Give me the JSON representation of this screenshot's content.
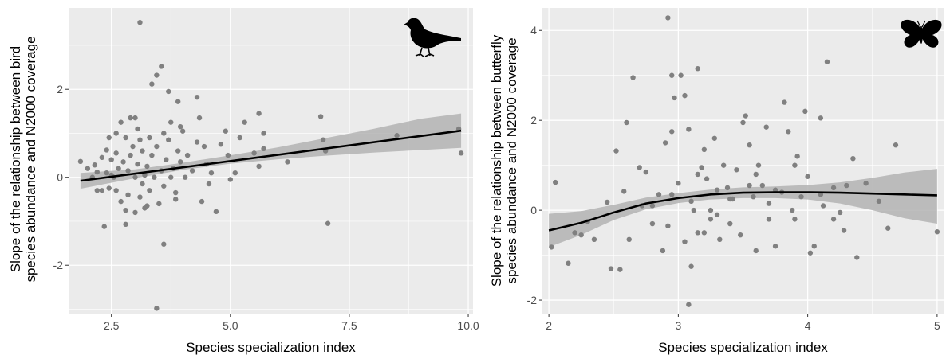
{
  "chart_data": [
    {
      "type": "scatter",
      "panel": "left",
      "icon": "bird-silhouette-icon",
      "xlabel": "Species specialization index",
      "ylabel_lines": [
        "Slope of the relationship between bird",
        "species abundance and N2000 coverage"
      ],
      "xlim": [
        1.6,
        10.1
      ],
      "ylim": [
        -3.1,
        3.85
      ],
      "xticks": [
        2.5,
        5.0,
        7.5,
        10.0
      ],
      "xtick_labels": [
        "2.5",
        "5.0",
        "7.5",
        "10.0"
      ],
      "yticks": [
        -2,
        0,
        2
      ],
      "ytick_labels": [
        "-2",
        "0",
        "2"
      ],
      "grid": true,
      "points": [
        [
          1.85,
          0.36
        ],
        [
          2.0,
          0.2
        ],
        [
          2.1,
          0.0
        ],
        [
          2.15,
          0.28
        ],
        [
          2.2,
          0.12
        ],
        [
          2.3,
          0.45
        ],
        [
          2.3,
          -0.3
        ],
        [
          2.35,
          -1.12
        ],
        [
          2.4,
          0.1
        ],
        [
          2.4,
          0.62
        ],
        [
          2.45,
          0.9
        ],
        [
          2.45,
          -0.25
        ],
        [
          2.5,
          0.4
        ],
        [
          2.5,
          0.05
        ],
        [
          2.55,
          0.0
        ],
        [
          2.6,
          1.0
        ],
        [
          2.6,
          -0.3
        ],
        [
          2.6,
          0.55
        ],
        [
          2.65,
          0.2
        ],
        [
          2.7,
          1.25
        ],
        [
          2.7,
          -0.55
        ],
        [
          2.75,
          0.35
        ],
        [
          2.8,
          0.9
        ],
        [
          2.8,
          -1.07
        ],
        [
          2.85,
          0.15
        ],
        [
          2.85,
          -0.4
        ],
        [
          2.9,
          1.35
        ],
        [
          2.9,
          0.5
        ],
        [
          2.95,
          0.7
        ],
        [
          3.0,
          0.0
        ],
        [
          3.0,
          -0.8
        ],
        [
          3.05,
          1.1
        ],
        [
          3.05,
          0.3
        ],
        [
          3.1,
          -0.45
        ],
        [
          3.1,
          0.85
        ],
        [
          3.15,
          0.6
        ],
        [
          3.15,
          -0.15
        ],
        [
          3.2,
          0.05
        ],
        [
          3.2,
          -0.7
        ],
        [
          3.25,
          0.25
        ],
        [
          3.3,
          0.9
        ],
        [
          3.3,
          -0.3
        ],
        [
          3.35,
          0.5
        ],
        [
          3.4,
          0.0
        ],
        [
          3.45,
          0.7
        ],
        [
          3.5,
          -0.6
        ],
        [
          3.55,
          0.15
        ],
        [
          3.6,
          1.0
        ],
        [
          3.6,
          -0.2
        ],
        [
          3.65,
          0.4
        ],
        [
          3.7,
          0.85
        ],
        [
          3.75,
          0.0
        ],
        [
          3.8,
          0.2
        ],
        [
          3.85,
          -0.5
        ],
        [
          3.9,
          0.6
        ],
        [
          3.95,
          0.35
        ],
        [
          4.0,
          1.05
        ],
        [
          4.05,
          0.0
        ],
        [
          4.1,
          0.5
        ],
        [
          4.2,
          0.15
        ],
        [
          4.3,
          0.8
        ],
        [
          4.4,
          -0.55
        ],
        [
          4.5,
          0.3
        ],
        [
          4.6,
          0.1
        ],
        [
          3.1,
          3.52
        ],
        [
          3.55,
          2.52
        ],
        [
          3.45,
          2.32
        ],
        [
          3.35,
          2.12
        ],
        [
          3.7,
          1.95
        ],
        [
          3.9,
          1.72
        ],
        [
          3.0,
          1.35
        ],
        [
          4.3,
          1.82
        ],
        [
          4.35,
          1.35
        ],
        [
          3.75,
          1.25
        ],
        [
          3.6,
          -1.52
        ],
        [
          3.45,
          -2.98
        ],
        [
          4.55,
          -0.15
        ],
        [
          4.8,
          0.75
        ],
        [
          4.9,
          1.05
        ],
        [
          5.0,
          -0.05
        ],
        [
          5.1,
          0.1
        ],
        [
          5.3,
          1.25
        ],
        [
          5.5,
          0.55
        ],
        [
          5.6,
          0.25
        ],
        [
          5.6,
          1.45
        ],
        [
          5.7,
          1.0
        ],
        [
          5.7,
          0.65
        ],
        [
          6.2,
          0.35
        ],
        [
          6.9,
          1.38
        ],
        [
          6.95,
          0.85
        ],
        [
          7.0,
          0.6
        ],
        [
          7.05,
          -1.05
        ],
        [
          8.5,
          0.95
        ],
        [
          9.8,
          1.1
        ],
        [
          9.85,
          0.55
        ],
        [
          4.7,
          -0.78
        ],
        [
          4.95,
          0.5
        ],
        [
          2.2,
          -0.3
        ],
        [
          2.8,
          -0.75
        ],
        [
          3.25,
          -0.65
        ],
        [
          3.85,
          -0.35
        ],
        [
          4.45,
          0.7
        ],
        [
          5.2,
          0.9
        ],
        [
          3.95,
          1.15
        ]
      ],
      "fit": {
        "x0": 1.85,
        "y0": -0.08,
        "x1": 9.85,
        "y1": 1.06
      },
      "band": [
        [
          1.85,
          -0.26,
          0.1
        ],
        [
          3.0,
          -0.02,
          0.18
        ],
        [
          4.0,
          0.17,
          0.33
        ],
        [
          5.0,
          0.31,
          0.5
        ],
        [
          6.0,
          0.41,
          0.68
        ],
        [
          7.0,
          0.49,
          0.89
        ],
        [
          8.0,
          0.56,
          1.1
        ],
        [
          9.0,
          0.62,
          1.33
        ],
        [
          9.85,
          0.67,
          1.45
        ]
      ]
    },
    {
      "type": "scatter",
      "panel": "right",
      "icon": "butterfly-silhouette-icon",
      "xlabel": "Species specialization index",
      "ylabel_lines": [
        "Slope of the relationship between butterfly",
        "species abundance and N2000 coverage"
      ],
      "xlim": [
        1.95,
        5.05
      ],
      "ylim": [
        -2.3,
        4.5
      ],
      "xticks": [
        2,
        3,
        4,
        5
      ],
      "xtick_labels": [
        "2",
        "3",
        "4",
        "5"
      ],
      "yticks": [
        -2,
        0,
        2,
        4
      ],
      "ytick_labels": [
        "-2",
        "0",
        "2",
        "4"
      ],
      "grid": true,
      "points": [
        [
          2.02,
          -0.82
        ],
        [
          2.05,
          0.62
        ],
        [
          2.15,
          -1.18
        ],
        [
          2.2,
          -0.5
        ],
        [
          2.3,
          -0.25
        ],
        [
          2.35,
          -0.65
        ],
        [
          2.45,
          0.18
        ],
        [
          2.48,
          -1.3
        ],
        [
          2.52,
          1.32
        ],
        [
          2.55,
          -1.32
        ],
        [
          2.58,
          0.42
        ],
        [
          2.6,
          1.95
        ],
        [
          2.62,
          -0.65
        ],
        [
          2.65,
          2.95
        ],
        [
          2.7,
          0.95
        ],
        [
          2.72,
          0.1
        ],
        [
          2.75,
          0.85
        ],
        [
          2.8,
          -0.3
        ],
        [
          2.85,
          0.35
        ],
        [
          2.88,
          -0.9
        ],
        [
          2.9,
          1.5
        ],
        [
          2.92,
          -0.35
        ],
        [
          2.95,
          3.0
        ],
        [
          2.95,
          1.75
        ],
        [
          2.97,
          2.5
        ],
        [
          3.0,
          0.6
        ],
        [
          3.02,
          3.0
        ],
        [
          3.05,
          -0.7
        ],
        [
          3.05,
          2.55
        ],
        [
          3.08,
          1.8
        ],
        [
          3.1,
          -1.25
        ],
        [
          3.12,
          0.0
        ],
        [
          3.15,
          3.15
        ],
        [
          3.15,
          -0.5
        ],
        [
          3.18,
          0.95
        ],
        [
          3.2,
          1.35
        ],
        [
          3.22,
          0.7
        ],
        [
          3.25,
          -0.2
        ],
        [
          3.28,
          1.6
        ],
        [
          3.3,
          0.45
        ],
        [
          3.32,
          -0.65
        ],
        [
          3.35,
          1.0
        ],
        [
          3.38,
          0.5
        ],
        [
          3.4,
          -0.3
        ],
        [
          3.42,
          0.25
        ],
        [
          3.45,
          0.9
        ],
        [
          3.48,
          -0.55
        ],
        [
          3.5,
          1.95
        ],
        [
          3.52,
          2.1
        ],
        [
          3.55,
          1.45
        ],
        [
          3.58,
          0.3
        ],
        [
          3.6,
          -0.9
        ],
        [
          3.62,
          1.0
        ],
        [
          3.65,
          0.55
        ],
        [
          3.68,
          1.85
        ],
        [
          3.7,
          -0.2
        ],
        [
          3.75,
          -0.8
        ],
        [
          3.8,
          0.4
        ],
        [
          3.82,
          2.4
        ],
        [
          3.85,
          1.75
        ],
        [
          3.88,
          0.0
        ],
        [
          3.9,
          -0.2
        ],
        [
          3.95,
          0.3
        ],
        [
          3.98,
          2.2
        ],
        [
          4.0,
          0.75
        ],
        [
          4.02,
          -0.95
        ],
        [
          4.05,
          -0.8
        ],
        [
          4.1,
          2.05
        ],
        [
          4.12,
          0.1
        ],
        [
          4.15,
          3.3
        ],
        [
          4.2,
          -0.2
        ],
        [
          4.25,
          -0.05
        ],
        [
          4.3,
          0.55
        ],
        [
          4.35,
          1.15
        ],
        [
          4.38,
          -1.05
        ],
        [
          4.45,
          0.6
        ],
        [
          4.55,
          0.2
        ],
        [
          4.62,
          -0.4
        ],
        [
          4.68,
          1.45
        ],
        [
          5.0,
          -0.48
        ],
        [
          3.08,
          -2.1
        ],
        [
          2.92,
          4.28
        ],
        [
          3.1,
          0.2
        ],
        [
          3.3,
          -0.1
        ],
        [
          3.6,
          0.8
        ],
        [
          3.92,
          1.2
        ],
        [
          4.28,
          -0.45
        ],
        [
          2.8,
          0.1
        ],
        [
          3.7,
          0.15
        ],
        [
          3.4,
          0.25
        ],
        [
          3.2,
          -0.5
        ],
        [
          3.55,
          0.55
        ],
        [
          2.95,
          0.35
        ],
        [
          3.15,
          0.8
        ],
        [
          3.75,
          0.45
        ],
        [
          4.1,
          0.35
        ],
        [
          2.25,
          -0.55
        ],
        [
          3.9,
          1.0
        ],
        [
          4.2,
          0.5
        ],
        [
          3.25,
          0.0
        ]
      ],
      "fit_curve": [
        [
          2.0,
          -0.45
        ],
        [
          2.25,
          -0.28
        ],
        [
          2.5,
          -0.05
        ],
        [
          2.75,
          0.15
        ],
        [
          3.0,
          0.27
        ],
        [
          3.25,
          0.35
        ],
        [
          3.5,
          0.39
        ],
        [
          3.75,
          0.4
        ],
        [
          4.0,
          0.4
        ],
        [
          4.25,
          0.39
        ],
        [
          4.5,
          0.37
        ],
        [
          4.75,
          0.35
        ],
        [
          5.0,
          0.33
        ]
      ],
      "band": [
        [
          2.0,
          -0.82,
          -0.08
        ],
        [
          2.25,
          -0.55,
          -0.02
        ],
        [
          2.5,
          -0.22,
          0.12
        ],
        [
          2.75,
          0.02,
          0.28
        ],
        [
          3.0,
          0.16,
          0.38
        ],
        [
          3.25,
          0.24,
          0.46
        ],
        [
          3.5,
          0.27,
          0.51
        ],
        [
          3.75,
          0.27,
          0.53
        ],
        [
          4.0,
          0.24,
          0.56
        ],
        [
          4.25,
          0.15,
          0.62
        ],
        [
          4.5,
          0.0,
          0.72
        ],
        [
          4.75,
          -0.18,
          0.84
        ],
        [
          5.0,
          -0.3,
          0.92
        ]
      ]
    }
  ]
}
